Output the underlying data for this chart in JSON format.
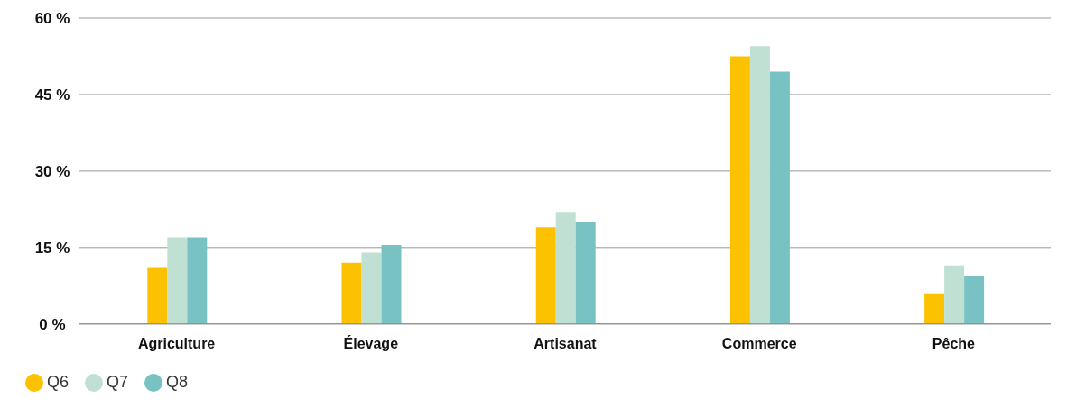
{
  "chart_data": {
    "type": "bar",
    "categories": [
      "Agriculture",
      "Élevage",
      "Artisanat",
      "Commerce",
      "Pêche"
    ],
    "series": [
      {
        "name": "Q6",
        "color": "#fcc200",
        "values": [
          11,
          12,
          19,
          52.5,
          6
        ]
      },
      {
        "name": "Q7",
        "color": "#bfe0d2",
        "values": [
          17,
          14,
          22,
          54.5,
          11.5
        ]
      },
      {
        "name": "Q8",
        "color": "#78c2c4",
        "values": [
          17,
          15.5,
          20,
          49.5,
          9.5
        ]
      }
    ],
    "ylim": [
      0,
      60
    ],
    "yticks": [
      {
        "value": 0,
        "label": "0 %"
      },
      {
        "value": 15,
        "label": "15 %"
      },
      {
        "value": 30,
        "label": "30 %"
      },
      {
        "value": 45,
        "label": "45 %"
      },
      {
        "value": 60,
        "label": "60 %"
      }
    ],
    "grid": "y",
    "legend": "bottom left"
  }
}
